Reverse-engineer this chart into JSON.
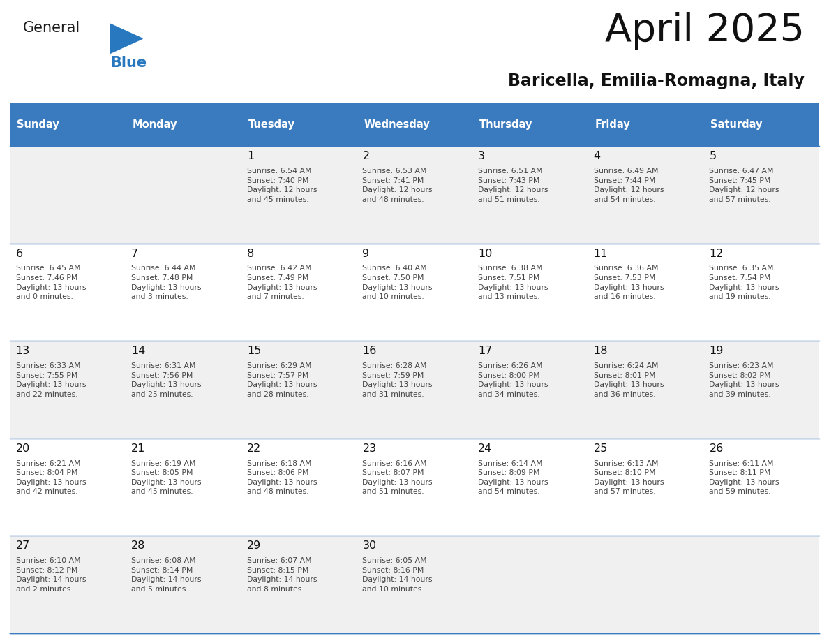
{
  "title": "April 2025",
  "subtitle": "Baricella, Emilia-Romagna, Italy",
  "header_color": "#3a7abf",
  "header_text_color": "#ffffff",
  "day_names": [
    "Sunday",
    "Monday",
    "Tuesday",
    "Wednesday",
    "Thursday",
    "Friday",
    "Saturday"
  ],
  "weeks": [
    [
      {
        "day": "",
        "info": ""
      },
      {
        "day": "",
        "info": ""
      },
      {
        "day": "1",
        "info": "Sunrise: 6:54 AM\nSunset: 7:40 PM\nDaylight: 12 hours\nand 45 minutes."
      },
      {
        "day": "2",
        "info": "Sunrise: 6:53 AM\nSunset: 7:41 PM\nDaylight: 12 hours\nand 48 minutes."
      },
      {
        "day": "3",
        "info": "Sunrise: 6:51 AM\nSunset: 7:43 PM\nDaylight: 12 hours\nand 51 minutes."
      },
      {
        "day": "4",
        "info": "Sunrise: 6:49 AM\nSunset: 7:44 PM\nDaylight: 12 hours\nand 54 minutes."
      },
      {
        "day": "5",
        "info": "Sunrise: 6:47 AM\nSunset: 7:45 PM\nDaylight: 12 hours\nand 57 minutes."
      }
    ],
    [
      {
        "day": "6",
        "info": "Sunrise: 6:45 AM\nSunset: 7:46 PM\nDaylight: 13 hours\nand 0 minutes."
      },
      {
        "day": "7",
        "info": "Sunrise: 6:44 AM\nSunset: 7:48 PM\nDaylight: 13 hours\nand 3 minutes."
      },
      {
        "day": "8",
        "info": "Sunrise: 6:42 AM\nSunset: 7:49 PM\nDaylight: 13 hours\nand 7 minutes."
      },
      {
        "day": "9",
        "info": "Sunrise: 6:40 AM\nSunset: 7:50 PM\nDaylight: 13 hours\nand 10 minutes."
      },
      {
        "day": "10",
        "info": "Sunrise: 6:38 AM\nSunset: 7:51 PM\nDaylight: 13 hours\nand 13 minutes."
      },
      {
        "day": "11",
        "info": "Sunrise: 6:36 AM\nSunset: 7:53 PM\nDaylight: 13 hours\nand 16 minutes."
      },
      {
        "day": "12",
        "info": "Sunrise: 6:35 AM\nSunset: 7:54 PM\nDaylight: 13 hours\nand 19 minutes."
      }
    ],
    [
      {
        "day": "13",
        "info": "Sunrise: 6:33 AM\nSunset: 7:55 PM\nDaylight: 13 hours\nand 22 minutes."
      },
      {
        "day": "14",
        "info": "Sunrise: 6:31 AM\nSunset: 7:56 PM\nDaylight: 13 hours\nand 25 minutes."
      },
      {
        "day": "15",
        "info": "Sunrise: 6:29 AM\nSunset: 7:57 PM\nDaylight: 13 hours\nand 28 minutes."
      },
      {
        "day": "16",
        "info": "Sunrise: 6:28 AM\nSunset: 7:59 PM\nDaylight: 13 hours\nand 31 minutes."
      },
      {
        "day": "17",
        "info": "Sunrise: 6:26 AM\nSunset: 8:00 PM\nDaylight: 13 hours\nand 34 minutes."
      },
      {
        "day": "18",
        "info": "Sunrise: 6:24 AM\nSunset: 8:01 PM\nDaylight: 13 hours\nand 36 minutes."
      },
      {
        "day": "19",
        "info": "Sunrise: 6:23 AM\nSunset: 8:02 PM\nDaylight: 13 hours\nand 39 minutes."
      }
    ],
    [
      {
        "day": "20",
        "info": "Sunrise: 6:21 AM\nSunset: 8:04 PM\nDaylight: 13 hours\nand 42 minutes."
      },
      {
        "day": "21",
        "info": "Sunrise: 6:19 AM\nSunset: 8:05 PM\nDaylight: 13 hours\nand 45 minutes."
      },
      {
        "day": "22",
        "info": "Sunrise: 6:18 AM\nSunset: 8:06 PM\nDaylight: 13 hours\nand 48 minutes."
      },
      {
        "day": "23",
        "info": "Sunrise: 6:16 AM\nSunset: 8:07 PM\nDaylight: 13 hours\nand 51 minutes."
      },
      {
        "day": "24",
        "info": "Sunrise: 6:14 AM\nSunset: 8:09 PM\nDaylight: 13 hours\nand 54 minutes."
      },
      {
        "day": "25",
        "info": "Sunrise: 6:13 AM\nSunset: 8:10 PM\nDaylight: 13 hours\nand 57 minutes."
      },
      {
        "day": "26",
        "info": "Sunrise: 6:11 AM\nSunset: 8:11 PM\nDaylight: 13 hours\nand 59 minutes."
      }
    ],
    [
      {
        "day": "27",
        "info": "Sunrise: 6:10 AM\nSunset: 8:12 PM\nDaylight: 14 hours\nand 2 minutes."
      },
      {
        "day": "28",
        "info": "Sunrise: 6:08 AM\nSunset: 8:14 PM\nDaylight: 14 hours\nand 5 minutes."
      },
      {
        "day": "29",
        "info": "Sunrise: 6:07 AM\nSunset: 8:15 PM\nDaylight: 14 hours\nand 8 minutes."
      },
      {
        "day": "30",
        "info": "Sunrise: 6:05 AM\nSunset: 8:16 PM\nDaylight: 14 hours\nand 10 minutes."
      },
      {
        "day": "",
        "info": ""
      },
      {
        "day": "",
        "info": ""
      },
      {
        "day": "",
        "info": ""
      }
    ]
  ],
  "bg_color": "#ffffff",
  "cell_bg_even": "#f0f0f0",
  "cell_bg_odd": "#ffffff",
  "border_color": "#3a7abf",
  "text_color": "#444444",
  "day_num_color": "#111111",
  "logo_general_color": "#1a1a1a",
  "logo_blue_color": "#2878c0"
}
